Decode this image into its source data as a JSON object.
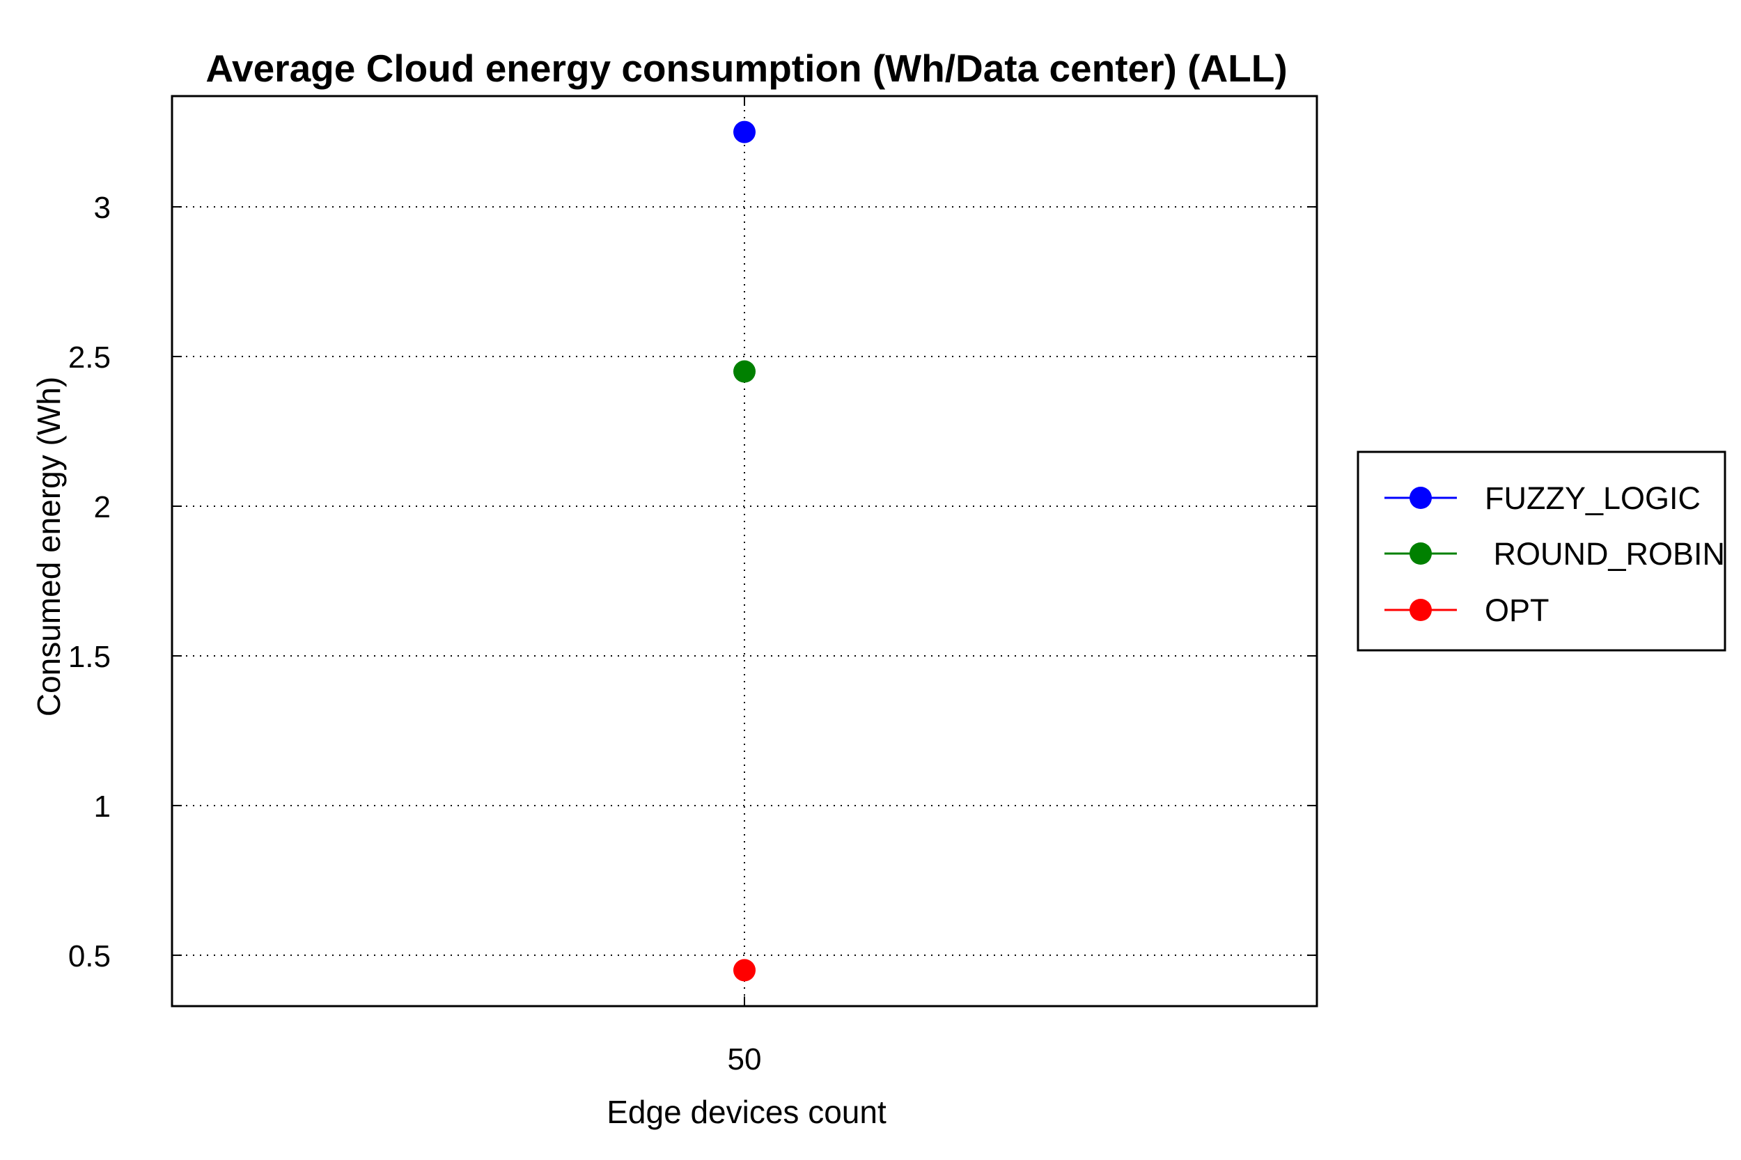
{
  "chart_data": {
    "type": "scatter",
    "title": "Average Cloud energy consumption (Wh/Data center) (ALL)",
    "xlabel": "Edge devices count",
    "ylabel": "Consumed energy (Wh)",
    "categories": [
      "50"
    ],
    "y_ticks": [
      "0.5",
      "1",
      "1.5",
      "2",
      "2.5",
      "3"
    ],
    "ylim": [
      0.33,
      3.37
    ],
    "grid": true,
    "grid_style": "dotted",
    "legend_position": "right",
    "series": [
      {
        "name": "FUZZY_LOGIC",
        "color": "#0000ff",
        "values": [
          3.25
        ]
      },
      {
        "name": " ROUND_ROBIN",
        "color": "#008000",
        "values": [
          2.45
        ]
      },
      {
        "name": "OPT",
        "color": "#ff0000",
        "values": [
          0.45
        ]
      }
    ]
  }
}
